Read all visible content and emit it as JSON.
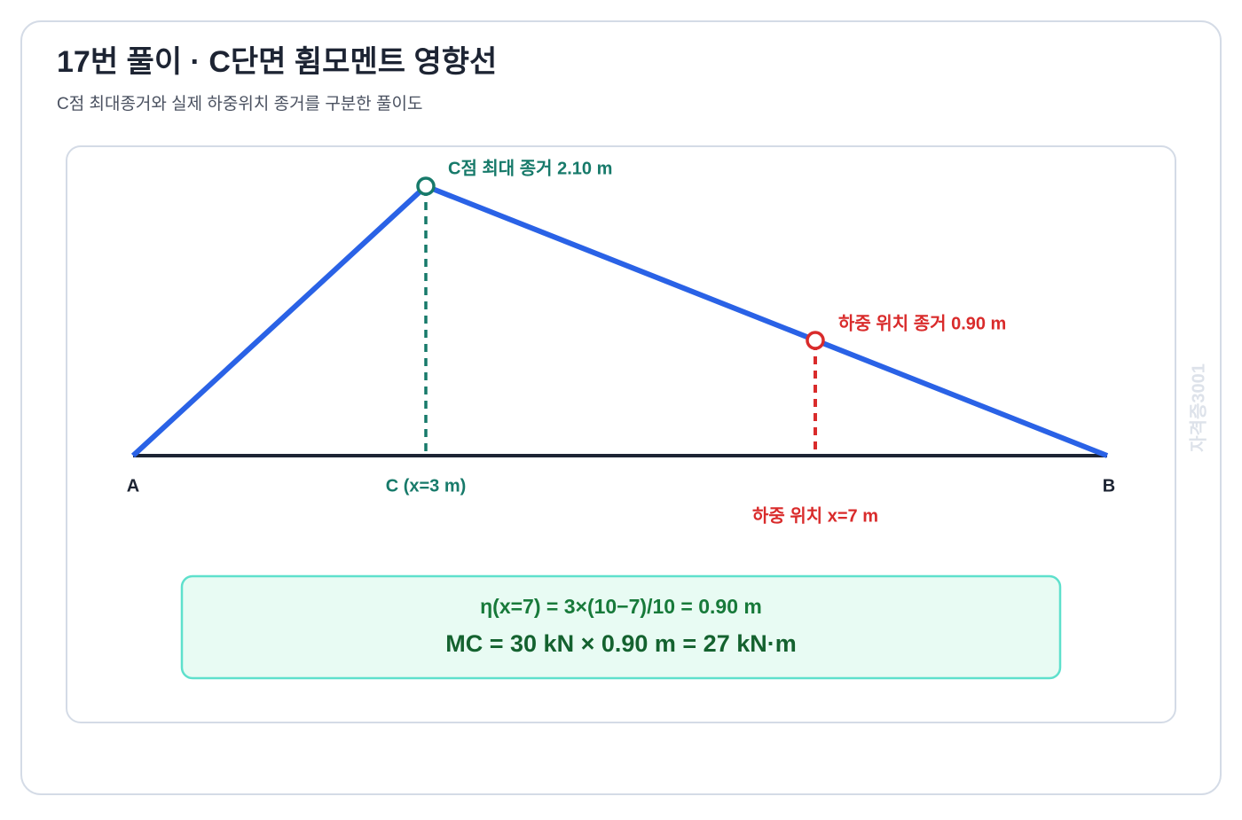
{
  "header": {
    "title": "17번 풀이 · C단면 휨모멘트 영향선",
    "subtitle": "C점 최대종거와 실제 하중위치 종거를 구분한 풀이도"
  },
  "diagram": {
    "peak_label": "C점 최대 종거 2.10 m",
    "load_label": "하중 위치 종거 0.90 m",
    "support_a": "A",
    "section_c": "C (x=3 m)",
    "support_b": "B",
    "load_position": "하중 위치 x=7 m"
  },
  "formula": {
    "line1": "η(x=7) = 3×(10−7)/10 = 0.90 m",
    "line2": "MC = 30 kN × 0.90 m = 27 kN·m"
  },
  "watermark": "자격증3001"
}
